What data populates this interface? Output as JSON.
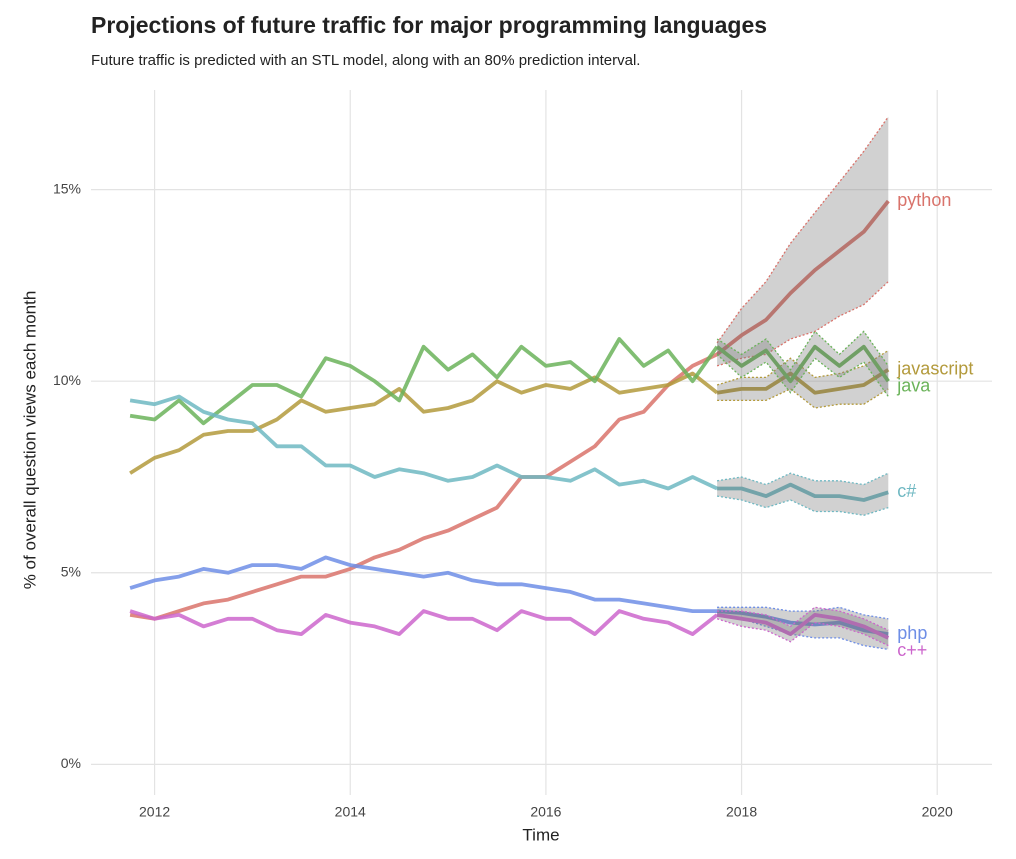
{
  "chart_data": {
    "type": "line",
    "title": "Projections of future traffic for major programming languages",
    "subtitle": "Future traffic is predicted with an STL model, along with an 80% prediction interval.",
    "x_label": "Time",
    "y_label": "% of overall question views each month",
    "xlim": [
      2011.35,
      2020.56
    ],
    "ylim": [
      -0.8,
      17.6
    ],
    "xticks": [
      2012,
      2014,
      2016,
      2018,
      2020
    ],
    "yticks": [
      {
        "value": 0,
        "label": "0%"
      },
      {
        "value": 5,
        "label": "5%"
      },
      {
        "value": 10,
        "label": "10%"
      },
      {
        "value": 15,
        "label": "15%"
      }
    ],
    "grid": true,
    "x": [
      2011.75,
      2012.0,
      2012.25,
      2012.5,
      2012.75,
      2013.0,
      2013.25,
      2013.5,
      2013.75,
      2014.0,
      2014.25,
      2014.5,
      2014.75,
      2015.0,
      2015.25,
      2015.5,
      2015.75,
      2016.0,
      2016.25,
      2016.5,
      2016.75,
      2017.0,
      2017.25,
      2017.5,
      2017.75,
      2018.0,
      2018.25,
      2018.5,
      2018.75,
      2019.0,
      2019.25,
      2019.5
    ],
    "series": [
      {
        "name": "python",
        "color": "#d9736b",
        "values": [
          3.9,
          3.8,
          4.0,
          4.2,
          4.3,
          4.5,
          4.7,
          4.9,
          4.9,
          5.1,
          5.4,
          5.6,
          5.9,
          6.1,
          6.4,
          6.7,
          7.5,
          7.5,
          7.9,
          8.3,
          9.0,
          9.2,
          9.9,
          10.4,
          10.7,
          null,
          null,
          null,
          null,
          null,
          null,
          null
        ],
        "forecast": [
          null,
          null,
          null,
          null,
          null,
          null,
          null,
          null,
          null,
          null,
          null,
          null,
          null,
          null,
          null,
          null,
          null,
          null,
          null,
          null,
          null,
          null,
          null,
          null,
          10.7,
          11.2,
          11.6,
          12.3,
          12.9,
          13.4,
          13.9,
          14.7
        ],
        "lower": [
          null,
          null,
          null,
          null,
          null,
          null,
          null,
          null,
          null,
          null,
          null,
          null,
          null,
          null,
          null,
          null,
          null,
          null,
          null,
          null,
          null,
          null,
          null,
          null,
          10.4,
          10.6,
          10.7,
          11.1,
          11.3,
          11.7,
          12.0,
          12.6
        ],
        "upper": [
          null,
          null,
          null,
          null,
          null,
          null,
          null,
          null,
          null,
          null,
          null,
          null,
          null,
          null,
          null,
          null,
          null,
          null,
          null,
          null,
          null,
          null,
          null,
          null,
          11.0,
          11.9,
          12.6,
          13.6,
          14.4,
          15.2,
          16.0,
          16.9
        ]
      },
      {
        "name": "javascript",
        "color": "#b39a3c",
        "values": [
          7.6,
          8.0,
          8.2,
          8.6,
          8.7,
          8.7,
          9.0,
          9.5,
          9.2,
          9.3,
          9.4,
          9.8,
          9.2,
          9.3,
          9.5,
          10.0,
          9.7,
          9.9,
          9.8,
          10.1,
          9.7,
          9.8,
          9.9,
          10.2,
          9.7,
          null,
          null,
          null,
          null,
          null,
          null,
          null
        ],
        "forecast": [
          null,
          null,
          null,
          null,
          null,
          null,
          null,
          null,
          null,
          null,
          null,
          null,
          null,
          null,
          null,
          null,
          null,
          null,
          null,
          null,
          null,
          null,
          null,
          null,
          9.7,
          9.8,
          9.8,
          10.2,
          9.7,
          9.8,
          9.9,
          10.3
        ],
        "lower": [
          null,
          null,
          null,
          null,
          null,
          null,
          null,
          null,
          null,
          null,
          null,
          null,
          null,
          null,
          null,
          null,
          null,
          null,
          null,
          null,
          null,
          null,
          null,
          null,
          9.5,
          9.5,
          9.5,
          9.8,
          9.3,
          9.4,
          9.4,
          9.8
        ],
        "upper": [
          null,
          null,
          null,
          null,
          null,
          null,
          null,
          null,
          null,
          null,
          null,
          null,
          null,
          null,
          null,
          null,
          null,
          null,
          null,
          null,
          null,
          null,
          null,
          null,
          9.9,
          10.1,
          10.1,
          10.6,
          10.1,
          10.2,
          10.4,
          10.8
        ]
      },
      {
        "name": "java",
        "color": "#6bb35a",
        "values": [
          9.1,
          9.0,
          9.5,
          8.9,
          9.4,
          9.9,
          9.9,
          9.6,
          10.6,
          10.4,
          10.0,
          9.5,
          10.9,
          10.3,
          10.7,
          10.1,
          10.9,
          10.4,
          10.5,
          10.0,
          11.1,
          10.4,
          10.8,
          10.0,
          10.9,
          null,
          null,
          null,
          null,
          null,
          null,
          null
        ],
        "forecast": [
          null,
          null,
          null,
          null,
          null,
          null,
          null,
          null,
          null,
          null,
          null,
          null,
          null,
          null,
          null,
          null,
          null,
          null,
          null,
          null,
          null,
          null,
          null,
          null,
          10.9,
          10.4,
          10.8,
          10.0,
          10.9,
          10.4,
          10.9,
          10.0
        ],
        "lower": [
          null,
          null,
          null,
          null,
          null,
          null,
          null,
          null,
          null,
          null,
          null,
          null,
          null,
          null,
          null,
          null,
          null,
          null,
          null,
          null,
          null,
          null,
          null,
          null,
          10.7,
          10.1,
          10.5,
          9.7,
          10.6,
          10.1,
          10.5,
          9.6
        ],
        "upper": [
          null,
          null,
          null,
          null,
          null,
          null,
          null,
          null,
          null,
          null,
          null,
          null,
          null,
          null,
          null,
          null,
          null,
          null,
          null,
          null,
          null,
          null,
          null,
          null,
          11.1,
          10.7,
          11.1,
          10.3,
          11.3,
          10.7,
          11.3,
          10.4
        ]
      },
      {
        "name": "c#",
        "color": "#6fb8c2",
        "values": [
          9.5,
          9.4,
          9.6,
          9.2,
          9.0,
          8.9,
          8.3,
          8.3,
          7.8,
          7.8,
          7.5,
          7.7,
          7.6,
          7.4,
          7.5,
          7.8,
          7.5,
          7.5,
          7.4,
          7.7,
          7.3,
          7.4,
          7.2,
          7.5,
          7.2,
          null,
          null,
          null,
          null,
          null,
          null,
          null
        ],
        "forecast": [
          null,
          null,
          null,
          null,
          null,
          null,
          null,
          null,
          null,
          null,
          null,
          null,
          null,
          null,
          null,
          null,
          null,
          null,
          null,
          null,
          null,
          null,
          null,
          null,
          7.2,
          7.2,
          7.0,
          7.3,
          7.0,
          7.0,
          6.9,
          7.1
        ],
        "lower": [
          null,
          null,
          null,
          null,
          null,
          null,
          null,
          null,
          null,
          null,
          null,
          null,
          null,
          null,
          null,
          null,
          null,
          null,
          null,
          null,
          null,
          null,
          null,
          null,
          7.0,
          6.9,
          6.7,
          6.9,
          6.6,
          6.6,
          6.5,
          6.7
        ],
        "upper": [
          null,
          null,
          null,
          null,
          null,
          null,
          null,
          null,
          null,
          null,
          null,
          null,
          null,
          null,
          null,
          null,
          null,
          null,
          null,
          null,
          null,
          null,
          null,
          null,
          7.4,
          7.5,
          7.3,
          7.6,
          7.4,
          7.4,
          7.3,
          7.6
        ]
      },
      {
        "name": "php",
        "color": "#6e8ee6",
        "values": [
          4.6,
          4.8,
          4.9,
          5.1,
          5.0,
          5.2,
          5.2,
          5.1,
          5.4,
          5.2,
          5.1,
          5.0,
          4.9,
          5.0,
          4.8,
          4.7,
          4.7,
          4.6,
          4.5,
          4.3,
          4.3,
          4.2,
          4.1,
          4.0,
          4.0,
          null,
          null,
          null,
          null,
          null,
          null,
          null
        ],
        "forecast": [
          null,
          null,
          null,
          null,
          null,
          null,
          null,
          null,
          null,
          null,
          null,
          null,
          null,
          null,
          null,
          null,
          null,
          null,
          null,
          null,
          null,
          null,
          null,
          null,
          4.0,
          3.95,
          3.85,
          3.7,
          3.65,
          3.7,
          3.5,
          3.4
        ],
        "lower": [
          null,
          null,
          null,
          null,
          null,
          null,
          null,
          null,
          null,
          null,
          null,
          null,
          null,
          null,
          null,
          null,
          null,
          null,
          null,
          null,
          null,
          null,
          null,
          null,
          3.9,
          3.8,
          3.6,
          3.4,
          3.3,
          3.3,
          3.1,
          3.0
        ],
        "upper": [
          null,
          null,
          null,
          null,
          null,
          null,
          null,
          null,
          null,
          null,
          null,
          null,
          null,
          null,
          null,
          null,
          null,
          null,
          null,
          null,
          null,
          null,
          null,
          null,
          4.1,
          4.1,
          4.1,
          4.0,
          4.0,
          4.1,
          3.9,
          3.8
        ]
      },
      {
        "name": "c++",
        "color": "#cc66cc",
        "values": [
          4.0,
          3.8,
          3.9,
          3.6,
          3.8,
          3.8,
          3.5,
          3.4,
          3.9,
          3.7,
          3.6,
          3.4,
          4.0,
          3.8,
          3.8,
          3.5,
          4.0,
          3.8,
          3.8,
          3.4,
          4.0,
          3.8,
          3.7,
          3.4,
          3.9,
          null,
          null,
          null,
          null,
          null,
          null,
          null
        ],
        "forecast": [
          null,
          null,
          null,
          null,
          null,
          null,
          null,
          null,
          null,
          null,
          null,
          null,
          null,
          null,
          null,
          null,
          null,
          null,
          null,
          null,
          null,
          null,
          null,
          null,
          3.9,
          3.8,
          3.7,
          3.4,
          3.9,
          3.8,
          3.6,
          3.3
        ],
        "lower": [
          null,
          null,
          null,
          null,
          null,
          null,
          null,
          null,
          null,
          null,
          null,
          null,
          null,
          null,
          null,
          null,
          null,
          null,
          null,
          null,
          null,
          null,
          null,
          null,
          3.8,
          3.6,
          3.5,
          3.2,
          3.7,
          3.6,
          3.4,
          3.1
        ],
        "upper": [
          null,
          null,
          null,
          null,
          null,
          null,
          null,
          null,
          null,
          null,
          null,
          null,
          null,
          null,
          null,
          null,
          null,
          null,
          null,
          null,
          null,
          null,
          null,
          null,
          4.0,
          4.0,
          3.9,
          3.6,
          4.1,
          4.0,
          3.8,
          3.5
        ]
      }
    ]
  }
}
